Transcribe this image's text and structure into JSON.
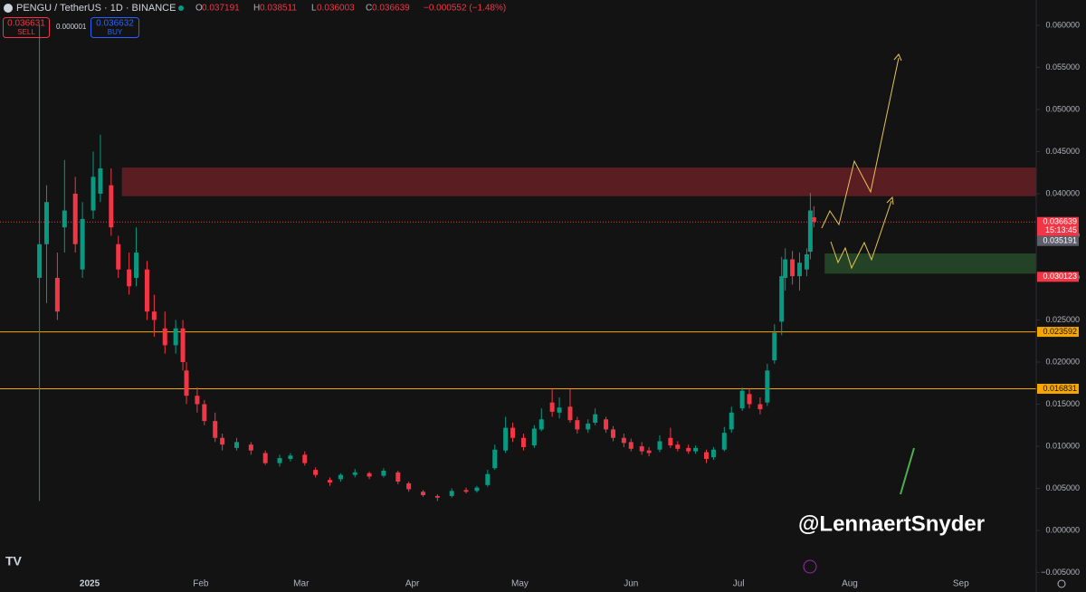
{
  "header": {
    "symbol": "PENGU / TetherUS · 1D · BINANCE",
    "ohlc_keys": [
      "O",
      "H",
      "L",
      "C"
    ],
    "change": "−0.000552 (−1.48%)",
    "sell": {
      "price": "0.036631",
      "label": "SELL"
    },
    "spread": "0.000001",
    "buy": {
      "price": "0.036632",
      "label": "BUY"
    }
  },
  "chart_data": {
    "type": "candlestick",
    "x": [
      -14,
      -12,
      -9,
      -7,
      -4,
      -2,
      1,
      3,
      6,
      8,
      11,
      13,
      16,
      18,
      21,
      24,
      26,
      27,
      30,
      32,
      35,
      37,
      41,
      45,
      49,
      53,
      56,
      60,
      63,
      67,
      70,
      74,
      78,
      82,
      86,
      89,
      93,
      97,
      101,
      105,
      108,
      111,
      113,
      116,
      118,
      121,
      124,
      126,
      129,
      131,
      134,
      136,
      139,
      141,
      144,
      146,
      149,
      151,
      154,
      156,
      159,
      162,
      164,
      167,
      169,
      172,
      174,
      177,
      179,
      182,
      184,
      187,
      189,
      191,
      193,
      194,
      196,
      198,
      200,
      201,
      202
    ],
    "open": [
      0.03,
      0.034,
      0.03,
      0.036,
      0.04,
      0.031,
      0.038,
      0.04,
      0.041,
      0.034,
      0.031,
      0.03,
      0.031,
      0.026,
      0.024,
      0.022,
      0.024,
      0.019,
      0.016,
      0.015,
      0.013,
      0.011,
      0.0098,
      0.0102,
      0.0092,
      0.008,
      0.0085,
      0.009,
      0.0072,
      0.006,
      0.0061,
      0.0066,
      0.0068,
      0.0065,
      0.0069,
      0.0056,
      0.0046,
      0.0041,
      0.0041,
      0.0048,
      0.0047,
      0.0054,
      0.0074,
      0.0095,
      0.0122,
      0.011,
      0.0101,
      0.012,
      0.0152,
      0.014,
      0.0147,
      0.0131,
      0.012,
      0.0128,
      0.0132,
      0.012,
      0.011,
      0.0105,
      0.01,
      0.0095,
      0.0096,
      0.011,
      0.0102,
      0.0098,
      0.0094,
      0.0093,
      0.0087,
      0.0096,
      0.012,
      0.0145,
      0.0162,
      0.015,
      0.0152,
      0.0202,
      0.0248,
      0.03,
      0.0322,
      0.0302,
      0.031,
      0.0331,
      0.037191
    ],
    "high": [
      0.06,
      0.041,
      0.033,
      0.044,
      0.042,
      0.039,
      0.045,
      0.047,
      0.043,
      0.035,
      0.033,
      0.036,
      0.032,
      0.028,
      0.026,
      0.025,
      0.025,
      0.02,
      0.017,
      0.0155,
      0.014,
      0.0115,
      0.011,
      0.0105,
      0.0095,
      0.009,
      0.0092,
      0.0094,
      0.0075,
      0.0063,
      0.0068,
      0.0073,
      0.007,
      0.0074,
      0.0071,
      0.0058,
      0.0048,
      0.0043,
      0.005,
      0.0051,
      0.0053,
      0.0072,
      0.0102,
      0.0135,
      0.0128,
      0.0115,
      0.0125,
      0.0145,
      0.0168,
      0.0158,
      0.0168,
      0.0135,
      0.0132,
      0.0145,
      0.0135,
      0.0124,
      0.0115,
      0.0109,
      0.0105,
      0.0099,
      0.0113,
      0.0122,
      0.0106,
      0.0102,
      0.0101,
      0.0096,
      0.0099,
      0.0123,
      0.0147,
      0.017,
      0.0168,
      0.0158,
      0.0198,
      0.0245,
      0.0325,
      0.0335,
      0.0332,
      0.033,
      0.0335,
      0.0401,
      0.038511
    ],
    "low": [
      0.0035,
      0.027,
      0.025,
      0.033,
      0.033,
      0.03,
      0.037,
      0.039,
      0.035,
      0.03,
      0.028,
      0.029,
      0.025,
      0.023,
      0.021,
      0.021,
      0.019,
      0.015,
      0.014,
      0.0125,
      0.0105,
      0.0095,
      0.0095,
      0.009,
      0.0078,
      0.0076,
      0.0082,
      0.0077,
      0.0063,
      0.0053,
      0.0058,
      0.0063,
      0.0061,
      0.0063,
      0.0055,
      0.0046,
      0.004,
      0.0035,
      0.0039,
      0.0044,
      0.0045,
      0.0052,
      0.0072,
      0.0092,
      0.0105,
      0.0095,
      0.0098,
      0.0118,
      0.0135,
      0.0133,
      0.0128,
      0.0115,
      0.0116,
      0.0125,
      0.0116,
      0.0106,
      0.0099,
      0.0094,
      0.009,
      0.0088,
      0.0093,
      0.0098,
      0.0094,
      0.0091,
      0.0091,
      0.008,
      0.0084,
      0.0094,
      0.0116,
      0.0142,
      0.0145,
      0.0138,
      0.0148,
      0.0198,
      0.0232,
      0.0285,
      0.0292,
      0.0285,
      0.0302,
      0.0322,
      0.036003
    ],
    "close": [
      0.034,
      0.039,
      0.026,
      0.038,
      0.034,
      0.037,
      0.042,
      0.043,
      0.036,
      0.031,
      0.029,
      0.033,
      0.026,
      0.025,
      0.022,
      0.024,
      0.02,
      0.016,
      0.015,
      0.013,
      0.011,
      0.0102,
      0.0105,
      0.0095,
      0.008,
      0.0086,
      0.0089,
      0.008,
      0.0066,
      0.0057,
      0.0066,
      0.0069,
      0.0064,
      0.0071,
      0.0058,
      0.0049,
      0.0042,
      0.0039,
      0.0047,
      0.0046,
      0.0051,
      0.0067,
      0.0096,
      0.0122,
      0.011,
      0.0099,
      0.0121,
      0.0132,
      0.0141,
      0.0146,
      0.0131,
      0.012,
      0.0127,
      0.0138,
      0.012,
      0.011,
      0.0104,
      0.0097,
      0.0094,
      0.0092,
      0.0106,
      0.0101,
      0.0097,
      0.0094,
      0.0098,
      0.0085,
      0.0096,
      0.0116,
      0.014,
      0.0166,
      0.015,
      0.0144,
      0.019,
      0.0235,
      0.0302,
      0.0322,
      0.0302,
      0.0318,
      0.0328,
      0.038,
      0.036639
    ],
    "up_color": "#089981",
    "down_color": "#f23645",
    "xlim": [
      -25,
      264
    ],
    "ylim": [
      -0.0058,
      0.063
    ],
    "xticks": [
      {
        "value": 0,
        "label": "2025"
      },
      {
        "value": 31,
        "label": "Feb"
      },
      {
        "value": 59,
        "label": "Mar"
      },
      {
        "value": 90,
        "label": "Apr"
      },
      {
        "value": 120,
        "label": "May"
      },
      {
        "value": 151,
        "label": "Jun"
      },
      {
        "value": 181,
        "label": "Jul"
      },
      {
        "value": 212,
        "label": "Aug"
      },
      {
        "value": 243,
        "label": "Sep"
      }
    ],
    "yticks": [
      {
        "value": 0.06,
        "label": "0.060000"
      },
      {
        "value": 0.055,
        "label": "0.055000"
      },
      {
        "value": 0.05,
        "label": "0.050000"
      },
      {
        "value": 0.045,
        "label": "0.045000"
      },
      {
        "value": 0.04,
        "label": "0.040000"
      },
      {
        "value": 0.035,
        "label": "0.035000"
      },
      {
        "value": 0.03,
        "label": "0.030000"
      },
      {
        "value": 0.025,
        "label": "0.025000"
      },
      {
        "value": 0.02,
        "label": "0.020000"
      },
      {
        "value": 0.015,
        "label": "0.015000"
      },
      {
        "value": 0.01,
        "label": "0.010000"
      },
      {
        "value": 0.005,
        "label": "0.005000"
      },
      {
        "value": 0,
        "label": "0.000000"
      },
      {
        "value": -0.005,
        "label": "−0.005000"
      }
    ],
    "zones": [
      {
        "from": 0.0397,
        "to": 0.0431,
        "start": 9,
        "color": "rgba(242,54,69,0.32)"
      },
      {
        "from": 0.0305,
        "to": 0.0329,
        "start": 205,
        "color": "rgba(76,175,80,0.3)"
      }
    ],
    "levels": [
      {
        "value": 0.036639,
        "color": "#f23645",
        "line": "dotted"
      },
      {
        "value": 0.035191,
        "color": "#5d606b",
        "line": "none"
      },
      {
        "value": 0.030123,
        "color": "#f23645",
        "line": "none"
      },
      {
        "value": 0.023592,
        "color": "#f7a600",
        "line": "solid"
      },
      {
        "value": 0.016831,
        "color": "#f7a600",
        "line": "solid"
      }
    ],
    "countdown": "15:13:45",
    "watermark": "@LennaertSnyder"
  }
}
